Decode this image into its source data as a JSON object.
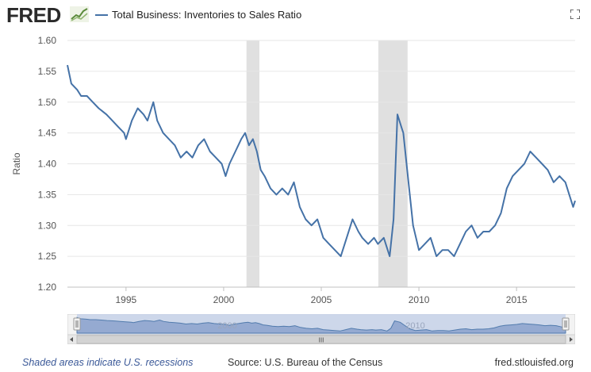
{
  "header": {
    "logo_text": "FRED",
    "logo_icon": "fred-graph-icon",
    "series_title": "Total Business: Inventories to Sales Ratio",
    "fullscreen_icon": "fullscreen-icon"
  },
  "colors": {
    "series": "#4572a7",
    "recession": "#e0e0e0",
    "navigator_fill": "#c6d1e8",
    "grid": "#e6e6e6"
  },
  "chart_data": {
    "type": "line",
    "title": "Total Business: Inventories to Sales Ratio",
    "xlabel": "",
    "ylabel": "Ratio",
    "xlim": [
      1992.0,
      2018.0
    ],
    "ylim": [
      1.2,
      1.6
    ],
    "yticks": [
      "1.20",
      "1.25",
      "1.30",
      "1.35",
      "1.40",
      "1.45",
      "1.50",
      "1.55",
      "1.60"
    ],
    "xticks": [
      "1995",
      "2000",
      "2005",
      "2010",
      "2015"
    ],
    "grid": true,
    "recessions": [
      [
        2001.17,
        2001.83
      ],
      [
        2007.92,
        2009.42
      ]
    ],
    "series": [
      {
        "name": "Total Business: Inventories to Sales Ratio",
        "x": [
          1992.0,
          1992.2,
          1992.5,
          1992.7,
          1993.0,
          1993.3,
          1993.6,
          1994.0,
          1994.3,
          1994.6,
          1994.9,
          1995.0,
          1995.3,
          1995.6,
          1995.9,
          1996.1,
          1996.4,
          1996.6,
          1996.9,
          1997.2,
          1997.5,
          1997.8,
          1998.1,
          1998.4,
          1998.7,
          1999.0,
          1999.3,
          1999.6,
          1999.9,
          2000.1,
          2000.3,
          2000.6,
          2000.9,
          2001.1,
          2001.3,
          2001.5,
          2001.7,
          2001.9,
          2002.1,
          2002.4,
          2002.7,
          2003.0,
          2003.3,
          2003.6,
          2003.9,
          2004.2,
          2004.5,
          2004.8,
          2005.1,
          2005.4,
          2005.7,
          2006.0,
          2006.3,
          2006.6,
          2006.9,
          2007.1,
          2007.4,
          2007.7,
          2007.9,
          2008.2,
          2008.5,
          2008.7,
          2008.9,
          2009.1,
          2009.2,
          2009.4,
          2009.7,
          2010.0,
          2010.3,
          2010.6,
          2010.9,
          2011.2,
          2011.5,
          2011.8,
          2012.1,
          2012.4,
          2012.7,
          2013.0,
          2013.3,
          2013.6,
          2013.9,
          2014.2,
          2014.5,
          2014.8,
          2015.1,
          2015.4,
          2015.7,
          2016.0,
          2016.3,
          2016.6,
          2016.9,
          2017.2,
          2017.5,
          2017.7,
          2017.9,
          2018.0
        ],
        "y": [
          1.56,
          1.53,
          1.52,
          1.51,
          1.51,
          1.5,
          1.49,
          1.48,
          1.47,
          1.46,
          1.45,
          1.44,
          1.47,
          1.49,
          1.48,
          1.47,
          1.5,
          1.47,
          1.45,
          1.44,
          1.43,
          1.41,
          1.42,
          1.41,
          1.43,
          1.44,
          1.42,
          1.41,
          1.4,
          1.38,
          1.4,
          1.42,
          1.44,
          1.45,
          1.43,
          1.44,
          1.42,
          1.39,
          1.38,
          1.36,
          1.35,
          1.36,
          1.35,
          1.37,
          1.33,
          1.31,
          1.3,
          1.31,
          1.28,
          1.27,
          1.26,
          1.25,
          1.28,
          1.31,
          1.29,
          1.28,
          1.27,
          1.28,
          1.27,
          1.28,
          1.25,
          1.31,
          1.48,
          1.46,
          1.45,
          1.39,
          1.3,
          1.26,
          1.27,
          1.28,
          1.25,
          1.26,
          1.26,
          1.25,
          1.27,
          1.29,
          1.3,
          1.28,
          1.29,
          1.29,
          1.3,
          1.32,
          1.36,
          1.38,
          1.39,
          1.4,
          1.42,
          1.41,
          1.4,
          1.39,
          1.37,
          1.38,
          1.37,
          1.35,
          1.33,
          1.34
        ]
      }
    ]
  },
  "navigator": {
    "labels": [
      "2000",
      "2010"
    ],
    "left_arrow": "left-arrow-icon",
    "right_arrow": "right-arrow-icon",
    "grip": "III"
  },
  "footer": {
    "recession_note": "Shaded areas indicate U.S. recessions",
    "source": "Source: U.S. Bureau of the Census",
    "url": "fred.stlouisfed.org"
  }
}
